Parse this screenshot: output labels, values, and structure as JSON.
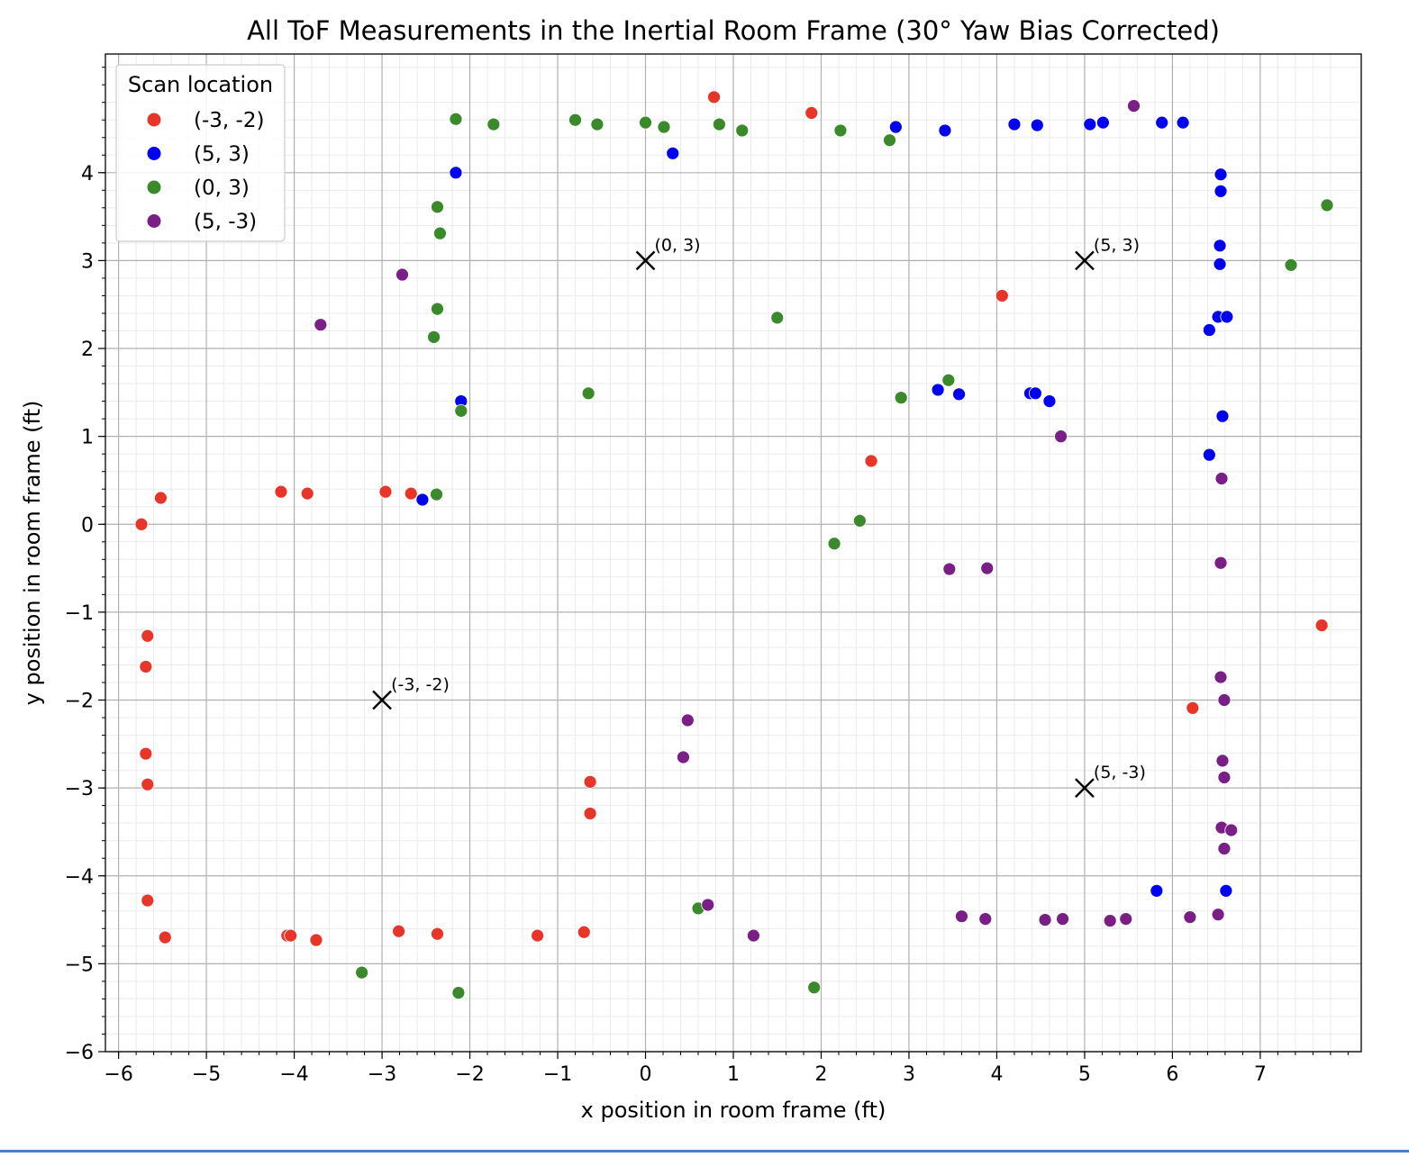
{
  "chart_data": {
    "type": "scatter",
    "title": "All ToF Measurements in the Inertial Room Frame (30° Yaw Bias Corrected)",
    "xlabel": "x position in room frame (ft)",
    "ylabel": "y position in room frame (ft)",
    "xlim": [
      -6.15,
      8.15
    ],
    "ylim": [
      -6.0,
      5.35
    ],
    "xticks": [
      -6,
      -5,
      -4,
      -3,
      -2,
      -1,
      0,
      1,
      2,
      3,
      4,
      5,
      6,
      7
    ],
    "yticks": [
      -6,
      -5,
      -4,
      -3,
      -2,
      -1,
      0,
      1,
      2,
      3,
      4
    ],
    "grid": true,
    "minor_grid": true,
    "legend": {
      "title": "Scan location",
      "placement": "top-left"
    },
    "series": [
      {
        "name": "(-3, -2)",
        "color": "#e8352a",
        "points": [
          [
            -5.74,
            0.0
          ],
          [
            -5.52,
            0.3
          ],
          [
            -4.15,
            0.37
          ],
          [
            -3.85,
            0.35
          ],
          [
            -2.96,
            0.37
          ],
          [
            -2.67,
            0.35
          ],
          [
            -5.67,
            -1.27
          ],
          [
            -5.69,
            -1.62
          ],
          [
            -5.69,
            -2.61
          ],
          [
            -5.67,
            -2.96
          ],
          [
            -5.67,
            -4.28
          ],
          [
            -5.47,
            -4.7
          ],
          [
            -4.08,
            -4.68
          ],
          [
            -4.04,
            -4.68
          ],
          [
            -3.75,
            -4.73
          ],
          [
            -2.81,
            -4.63
          ],
          [
            -2.37,
            -4.66
          ],
          [
            -1.23,
            -4.68
          ],
          [
            -0.7,
            -4.64
          ],
          [
            -0.63,
            -2.93
          ],
          [
            -0.63,
            -3.29
          ],
          [
            0.78,
            4.86
          ],
          [
            1.89,
            4.68
          ],
          [
            4.06,
            2.6
          ],
          [
            2.57,
            0.72
          ],
          [
            6.23,
            -2.09
          ],
          [
            7.7,
            -1.15
          ]
        ]
      },
      {
        "name": "(5, 3)",
        "color": "#0000f0",
        "points": [
          [
            -2.16,
            4.0
          ],
          [
            -2.1,
            1.4
          ],
          [
            -2.54,
            0.28
          ],
          [
            0.31,
            4.22
          ],
          [
            2.85,
            4.52
          ],
          [
            3.41,
            4.48
          ],
          [
            4.2,
            4.55
          ],
          [
            4.46,
            4.54
          ],
          [
            5.06,
            4.55
          ],
          [
            5.21,
            4.57
          ],
          [
            5.88,
            4.57
          ],
          [
            6.12,
            4.57
          ],
          [
            6.55,
            3.98
          ],
          [
            6.55,
            3.79
          ],
          [
            6.54,
            3.17
          ],
          [
            6.54,
            2.96
          ],
          [
            6.52,
            2.36
          ],
          [
            6.62,
            2.36
          ],
          [
            6.42,
            2.21
          ],
          [
            6.57,
            1.23
          ],
          [
            6.42,
            0.79
          ],
          [
            3.33,
            1.53
          ],
          [
            3.57,
            1.48
          ],
          [
            4.38,
            1.49
          ],
          [
            4.44,
            1.49
          ],
          [
            4.6,
            1.4
          ],
          [
            5.82,
            -4.17
          ],
          [
            6.61,
            -4.17
          ]
        ]
      },
      {
        "name": "(0, 3)",
        "color": "#3a8a2b",
        "points": [
          [
            -2.16,
            4.61
          ],
          [
            -1.73,
            4.55
          ],
          [
            -0.8,
            4.6
          ],
          [
            -0.55,
            4.55
          ],
          [
            0.0,
            4.57
          ],
          [
            0.21,
            4.52
          ],
          [
            0.84,
            4.55
          ],
          [
            1.1,
            4.48
          ],
          [
            2.22,
            4.48
          ],
          [
            2.78,
            4.37
          ],
          [
            -2.37,
            3.61
          ],
          [
            -2.34,
            3.31
          ],
          [
            -2.37,
            2.45
          ],
          [
            -2.41,
            2.13
          ],
          [
            -0.65,
            1.49
          ],
          [
            1.5,
            2.35
          ],
          [
            -2.1,
            1.29
          ],
          [
            -2.38,
            0.34
          ],
          [
            2.91,
            1.44
          ],
          [
            3.45,
            1.64
          ],
          [
            2.44,
            0.04
          ],
          [
            2.15,
            -0.22
          ],
          [
            7.35,
            2.95
          ],
          [
            7.76,
            3.63
          ],
          [
            0.6,
            -4.37
          ],
          [
            -3.23,
            -5.1
          ],
          [
            -2.13,
            -5.33
          ],
          [
            1.92,
            -5.27
          ]
        ]
      },
      {
        "name": "(5, -3)",
        "color": "#7a1f86",
        "points": [
          [
            -2.77,
            2.84
          ],
          [
            -3.7,
            2.27
          ],
          [
            5.56,
            4.76
          ],
          [
            4.73,
            1.0
          ],
          [
            6.56,
            0.52
          ],
          [
            6.55,
            -0.44
          ],
          [
            3.46,
            -0.51
          ],
          [
            3.89,
            -0.5
          ],
          [
            6.55,
            -1.74
          ],
          [
            6.59,
            -2.0
          ],
          [
            0.48,
            -2.23
          ],
          [
            0.43,
            -2.65
          ],
          [
            6.57,
            -2.69
          ],
          [
            6.59,
            -2.88
          ],
          [
            6.56,
            -3.45
          ],
          [
            6.67,
            -3.48
          ],
          [
            6.59,
            -3.69
          ],
          [
            0.71,
            -4.33
          ],
          [
            3.6,
            -4.46
          ],
          [
            3.87,
            -4.49
          ],
          [
            4.55,
            -4.5
          ],
          [
            4.75,
            -4.49
          ],
          [
            5.29,
            -4.51
          ],
          [
            5.47,
            -4.49
          ],
          [
            6.2,
            -4.47
          ],
          [
            6.52,
            -4.44
          ],
          [
            1.23,
            -4.68
          ]
        ]
      }
    ],
    "annotations": [
      {
        "label": "(0, 3)",
        "x": 0,
        "y": 3,
        "marker": "x"
      },
      {
        "label": "(5, 3)",
        "x": 5,
        "y": 3,
        "marker": "x"
      },
      {
        "label": "(-3, -2)",
        "x": -3,
        "y": -2,
        "marker": "x"
      },
      {
        "label": "(5, -3)",
        "x": 5,
        "y": -3,
        "marker": "x"
      }
    ]
  }
}
